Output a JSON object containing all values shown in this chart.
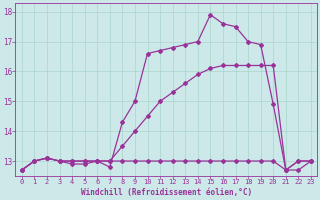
{
  "xlabel": "Windchill (Refroidissement éolien,°C)",
  "bg_color": "#cce8e8",
  "line_color": "#993399",
  "grid_color": "#aad4cc",
  "xlim": [
    -0.5,
    23.5
  ],
  "ylim": [
    12.5,
    18.3
  ],
  "yticks": [
    13,
    14,
    15,
    16,
    17,
    18
  ],
  "xticks": [
    0,
    1,
    2,
    3,
    4,
    5,
    6,
    7,
    8,
    9,
    10,
    11,
    12,
    13,
    14,
    15,
    16,
    17,
    18,
    19,
    20,
    21,
    22,
    23
  ],
  "series1_x": [
    0,
    1,
    2,
    3,
    4,
    5,
    6,
    7,
    8,
    9,
    10,
    11,
    12,
    13,
    14,
    15,
    16,
    17,
    18,
    19,
    20,
    21,
    22,
    23
  ],
  "series1_y": [
    12.7,
    13.0,
    13.1,
    13.0,
    13.0,
    13.0,
    13.0,
    13.0,
    13.0,
    13.0,
    13.0,
    13.0,
    13.0,
    13.0,
    13.0,
    13.0,
    13.0,
    13.0,
    13.0,
    13.0,
    13.0,
    12.7,
    13.0,
    13.0
  ],
  "series2_x": [
    0,
    1,
    2,
    3,
    4,
    5,
    6,
    7,
    8,
    9,
    10,
    11,
    12,
    13,
    14,
    15,
    16,
    17,
    18,
    19,
    20,
    21,
    22,
    23
  ],
  "series2_y": [
    12.7,
    13.0,
    13.1,
    13.0,
    13.0,
    13.0,
    13.0,
    13.0,
    13.5,
    14.0,
    14.5,
    15.0,
    15.3,
    15.6,
    15.9,
    16.1,
    16.2,
    16.2,
    16.2,
    16.2,
    16.2,
    12.7,
    13.0,
    13.0
  ],
  "series3_x": [
    0,
    1,
    2,
    3,
    4,
    5,
    6,
    7,
    8,
    9,
    10,
    11,
    12,
    13,
    14,
    15,
    16,
    17,
    18,
    19,
    20,
    21,
    22,
    23
  ],
  "series3_y": [
    12.7,
    13.0,
    13.1,
    13.0,
    12.9,
    12.9,
    13.0,
    12.8,
    14.3,
    15.0,
    16.6,
    16.7,
    16.8,
    16.9,
    17.0,
    17.9,
    17.6,
    17.5,
    17.0,
    16.9,
    14.9,
    12.7,
    12.7,
    13.0
  ]
}
